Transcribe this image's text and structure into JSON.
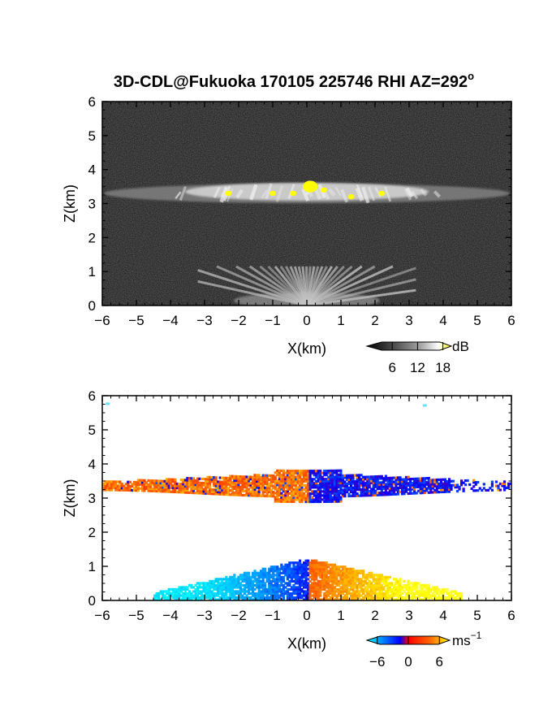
{
  "title_main": "3D-CDL@Fukuoka 170105 225746 RHI AZ=292",
  "title_deg": "o",
  "chart_data": [
    {
      "type": "heatmap",
      "quantity": "reflectivity",
      "xlabel": "X(km)",
      "ylabel": "Z(km)",
      "xlim": [
        -6,
        6
      ],
      "ylim": [
        0,
        6
      ],
      "xticks": [
        -6,
        -5,
        -4,
        -3,
        -2,
        -1,
        0,
        1,
        2,
        3,
        4,
        5,
        6
      ],
      "yticks": [
        0,
        1,
        2,
        3,
        4,
        5,
        6
      ],
      "colorbar": {
        "unit": "dB",
        "unit_sup": "",
        "range": [
          0,
          20
        ],
        "ticks": [
          6,
          12,
          18
        ],
        "colors": [
          "#000000",
          "#555555",
          "#aaaaaa",
          "#ffffff",
          "#ffff00"
        ]
      },
      "layers": [
        {
          "x0": -6,
          "x1": 6,
          "z": 3.3,
          "intensity": 0.6
        },
        {
          "x0": -3,
          "x1": 3,
          "z": 0.4,
          "intensity": 0.7
        }
      ],
      "yellow_cells": [
        [
          0.1,
          3.5
        ],
        [
          -0.4,
          3.3
        ],
        [
          0.5,
          3.4
        ],
        [
          -1.0,
          3.3
        ],
        [
          2.2,
          3.3
        ],
        [
          1.3,
          3.2
        ],
        [
          -2.3,
          3.3
        ]
      ]
    },
    {
      "type": "heatmap",
      "quantity": "doppler velocity",
      "xlabel": "X(km)",
      "ylabel": "Z(km)",
      "xlim": [
        -6,
        6
      ],
      "ylim": [
        0,
        6
      ],
      "xticks": [
        -6,
        -5,
        -4,
        -3,
        -2,
        -1,
        0,
        1,
        2,
        3,
        4,
        5,
        6
      ],
      "yticks": [
        0,
        1,
        2,
        3,
        4,
        5,
        6
      ],
      "colorbar": {
        "unit": "ms",
        "unit_sup": "−1",
        "range": [
          -8,
          8
        ],
        "ticks": [
          -6,
          0,
          6
        ],
        "colors": [
          "#00ffff",
          "#0000ff",
          "#ff0000",
          "#ffff00"
        ]
      },
      "layers": [
        {
          "x0": -6,
          "x1": 0,
          "z": 3.35,
          "velocity": 3
        },
        {
          "x0": 0,
          "x1": 6,
          "z": 3.35,
          "velocity": -3
        },
        {
          "x0": -4,
          "x1": 0,
          "z": 0.3,
          "velocity": -5
        },
        {
          "x0": 0,
          "x1": 4.5,
          "z": 0.3,
          "velocity": 5
        }
      ]
    }
  ]
}
